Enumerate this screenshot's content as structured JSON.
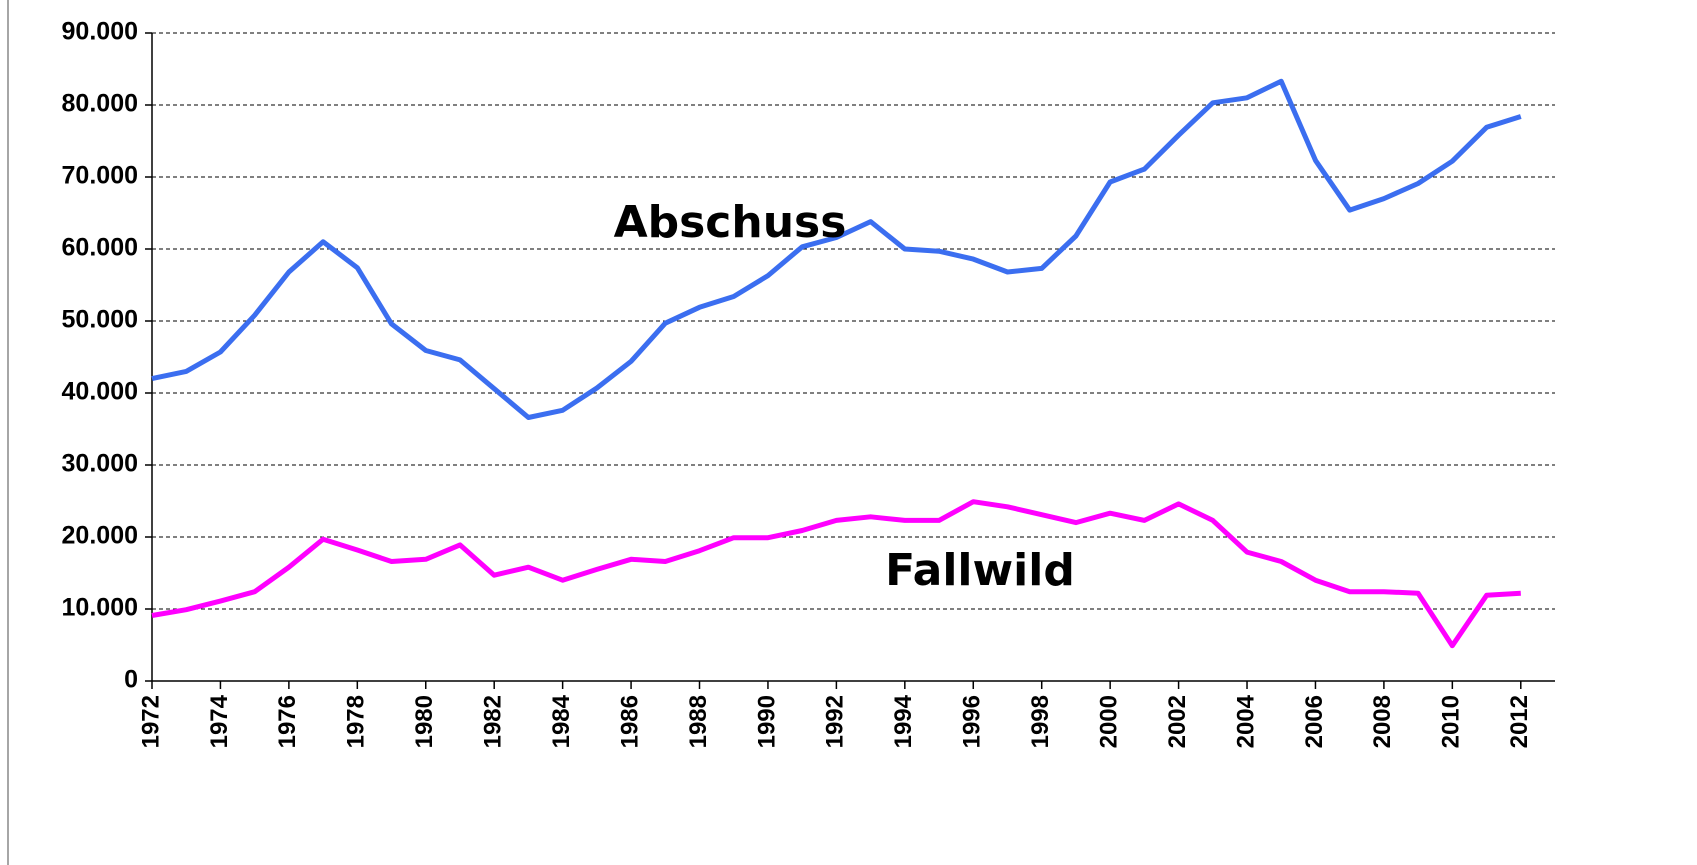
{
  "chart_data": {
    "type": "line",
    "x": [
      1972,
      1973,
      1974,
      1975,
      1976,
      1977,
      1978,
      1979,
      1980,
      1981,
      1982,
      1983,
      1984,
      1985,
      1986,
      1987,
      1988,
      1989,
      1990,
      1991,
      1992,
      1993,
      1994,
      1995,
      1996,
      1997,
      1998,
      1999,
      2000,
      2001,
      2002,
      2003,
      2004,
      2005,
      2006,
      2007,
      2008,
      2009,
      2010,
      2011,
      2012
    ],
    "series": [
      {
        "name": "Abschuss",
        "color": "#3b6ef0",
        "values": [
          42000,
          43000,
          45700,
          50800,
          56800,
          61000,
          57400,
          49600,
          45900,
          44600,
          40600,
          36600,
          37600,
          40700,
          44400,
          49700,
          51900,
          53400,
          56300,
          60300,
          61600,
          63800,
          60000,
          59700,
          58600,
          56800,
          57300,
          61800,
          69300,
          71100,
          75800,
          80300,
          81000,
          83300,
          72300,
          65400,
          67000,
          69100,
          72200,
          76900,
          78400
        ]
      },
      {
        "name": "Fallwild",
        "color": "#ff00ff",
        "values": [
          9100,
          9900,
          11100,
          12400,
          15800,
          19700,
          18200,
          16600,
          16900,
          18900,
          14700,
          15800,
          14000,
          15500,
          16900,
          16600,
          18100,
          19900,
          19900,
          20900,
          22300,
          22800,
          22300,
          22300,
          24900,
          24200,
          23100,
          22000,
          23300,
          22300,
          24600,
          22300,
          17900,
          16600,
          14000,
          12400,
          12400,
          12200,
          4900,
          11900,
          12200
        ]
      }
    ],
    "xlim": [
      1972,
      2013
    ],
    "xticks": [
      1972,
      1974,
      1976,
      1978,
      1980,
      1982,
      1984,
      1986,
      1988,
      1990,
      1992,
      1994,
      1996,
      1998,
      2000,
      2002,
      2004,
      2006,
      2008,
      2010,
      2012
    ],
    "ylim": [
      0,
      90000
    ],
    "yticks": [
      0,
      {
        "value": 10000,
        "label": "10.000"
      },
      {
        "value": 20000,
        "label": "20.000"
      },
      {
        "value": 30000,
        "label": "30.000"
      },
      {
        "value": 40000,
        "label": "40.000"
      },
      {
        "value": 50000,
        "label": "50.000"
      },
      {
        "value": 60000,
        "label": "60.000"
      },
      {
        "value": 70000,
        "label": "70.000"
      },
      {
        "value": 80000,
        "label": "80.000"
      },
      {
        "value": 90000,
        "label": "90.000"
      }
    ],
    "grid": true
  }
}
